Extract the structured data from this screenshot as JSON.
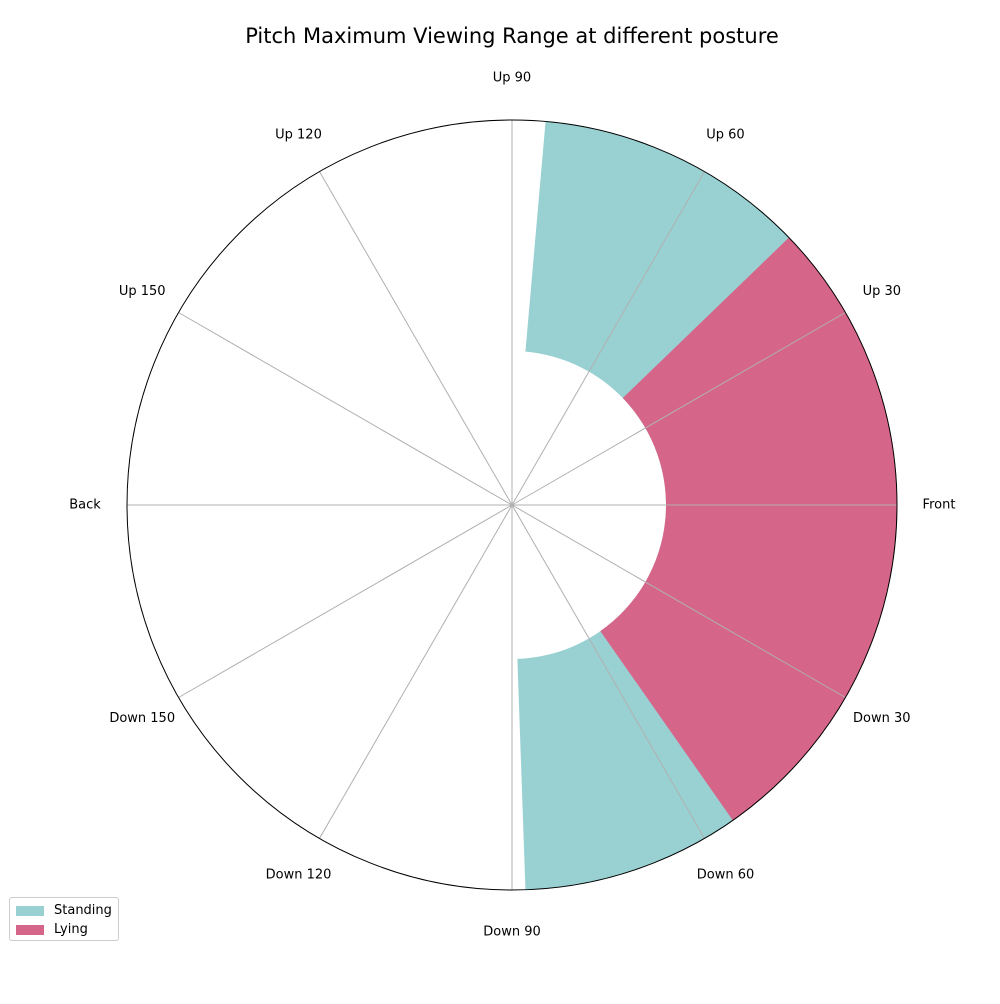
{
  "chart_data": {
    "type": "polar-bar",
    "title": "Pitch Maximum Viewing Range at different posture",
    "angle_unit": "degrees",
    "tick_labels": [
      {
        "angle": 0,
        "label": "Front"
      },
      {
        "angle": 30,
        "label": "Up 30"
      },
      {
        "angle": 60,
        "label": "Up 60"
      },
      {
        "angle": 90,
        "label": "Up 90"
      },
      {
        "angle": 120,
        "label": "Up 120"
      },
      {
        "angle": 150,
        "label": "Up 150"
      },
      {
        "angle": 180,
        "label": "Back"
      },
      {
        "angle": 210,
        "label": "Down 150"
      },
      {
        "angle": 240,
        "label": "Down 120"
      },
      {
        "angle": 270,
        "label": "Down 90"
      },
      {
        "angle": 300,
        "label": "Down 60"
      },
      {
        "angle": 330,
        "label": "Down 30"
      }
    ],
    "series": [
      {
        "name": "Standing",
        "color": "#99d1d3",
        "range_start_deg": -88,
        "range_end_deg": 85
      },
      {
        "name": "Lying",
        "color": "#d6658a",
        "range_start_deg": -55,
        "range_end_deg": 44
      }
    ],
    "inner_radius_fraction": 0.4,
    "grid": true,
    "legend_position": "bottom-left"
  }
}
